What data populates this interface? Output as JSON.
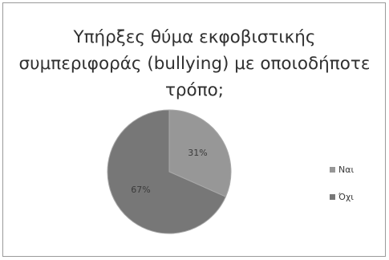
{
  "chart_data": {
    "type": "pie",
    "title_lines": [
      "Υπήρξες θύμα εκφοβιστικής",
      "συμπεριφοράς (bullying) με οποιοδήποτε",
      "τρόπο;"
    ],
    "categories": [
      "Ναι",
      "Όχι"
    ],
    "values": [
      31,
      67
    ],
    "labels": [
      "31%",
      "67%"
    ],
    "colors": [
      "#979797",
      "#777777"
    ],
    "edge_color": "#a8a8a8",
    "legend_position": "right"
  }
}
